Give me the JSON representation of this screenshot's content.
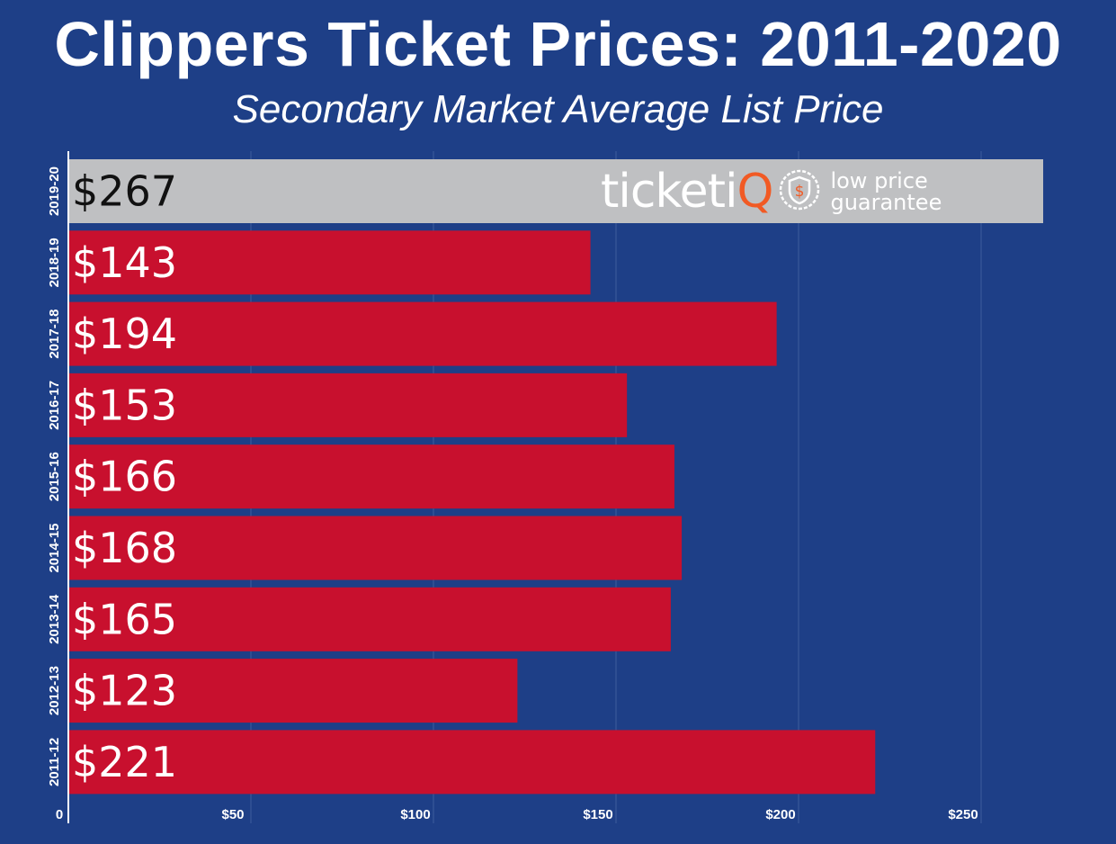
{
  "title": "Clippers Ticket Prices: 2011-2020",
  "subtitle": "Secondary Market Average List Price",
  "logo": {
    "wordmark": "ticketiQ",
    "wordmark_main": "ticketi",
    "wordmark_accent": "Q",
    "tagline_line1": "low price",
    "tagline_line2": "guarantee"
  },
  "colors": {
    "background": "#1e3f87",
    "bar": "#c8102e",
    "highlight_bar": "#bfc0c2",
    "logo_accent": "#f15a24"
  },
  "chart_data": {
    "type": "bar",
    "orientation": "horizontal",
    "title": "Clippers Ticket Prices: 2011-2020",
    "subtitle": "Secondary Market Average List Price",
    "categories": [
      "2019-20",
      "2018-19",
      "2017-18",
      "2016-17",
      "2015-16",
      "2014-15",
      "2013-14",
      "2012-13",
      "2011-12"
    ],
    "values": [
      267,
      143,
      194,
      153,
      166,
      168,
      165,
      123,
      221
    ],
    "data_labels": [
      "$267",
      "$143",
      "$194",
      "$153",
      "$166",
      "$168",
      "$165",
      "$123",
      "$221"
    ],
    "highlight": "2019-20",
    "xlim": [
      0,
      275
    ],
    "x_ticks": [
      0,
      50,
      100,
      150,
      200,
      250
    ],
    "x_tick_labels": [
      "0",
      "$50",
      "$100",
      "$150",
      "$200",
      "$250"
    ],
    "grid": true,
    "xlabel": "",
    "ylabel": ""
  }
}
